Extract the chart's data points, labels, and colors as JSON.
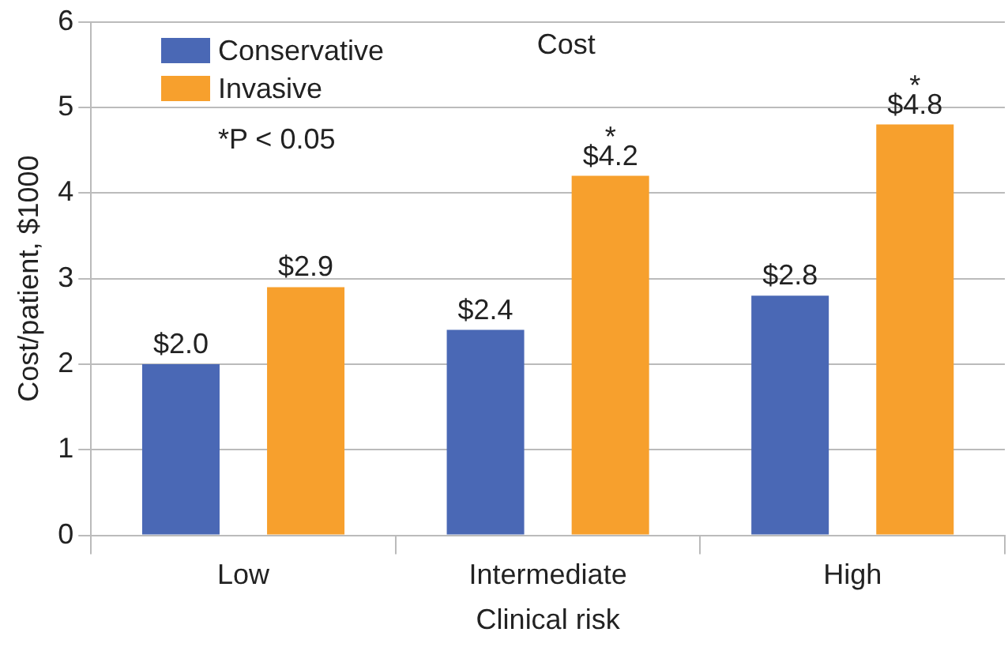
{
  "chart_data": {
    "type": "bar",
    "title": "Cost",
    "xlabel": "Clinical risk",
    "ylabel": "Cost/patient, $1000",
    "categories": [
      "Low",
      "Intermediate",
      "High"
    ],
    "series": [
      {
        "name": "Conservative",
        "color": "#4a68b5",
        "values": [
          2.0,
          2.4,
          2.8
        ],
        "value_labels": [
          "$2.0",
          "$2.4",
          "$2.8"
        ]
      },
      {
        "name": "Invasive",
        "color": "#f7a02d",
        "values": [
          2.9,
          4.2,
          4.8
        ],
        "value_labels": [
          "$2.9",
          "$4.2",
          "$4.8"
        ]
      }
    ],
    "ylim": [
      0,
      6
    ],
    "yticks": [
      0,
      1,
      2,
      3,
      4,
      5,
      6
    ],
    "grid": "y",
    "legend": "top left",
    "annotations": [
      "*P < 0.05",
      "*",
      "*"
    ]
  }
}
